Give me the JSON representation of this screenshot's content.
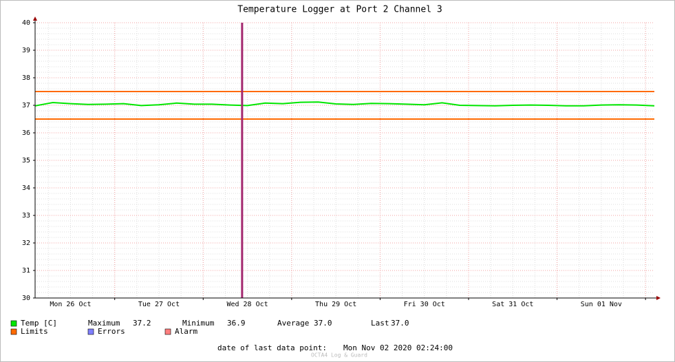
{
  "chart_data": {
    "type": "line",
    "title": "Temperature Logger at Port 2 Channel 3",
    "x": [
      0,
      0.2,
      0.4,
      0.6,
      0.8,
      1.0,
      1.2,
      1.4,
      1.6,
      1.8,
      2.0,
      2.2,
      2.4,
      2.6,
      2.8,
      3.0,
      3.2,
      3.4,
      3.6,
      3.8,
      4.0,
      4.2,
      4.4,
      4.6,
      4.8,
      5.0,
      5.2,
      5.4,
      5.6,
      5.8,
      6.0,
      6.2,
      6.4,
      6.6,
      6.8,
      7.0
    ],
    "series": [
      {
        "name": "Temp [C]",
        "color": "#00e600",
        "values": [
          36.98,
          37.1,
          37.06,
          37.03,
          37.04,
          37.06,
          36.99,
          37.02,
          37.08,
          37.04,
          37.04,
          37.01,
          36.99,
          37.08,
          37.06,
          37.11,
          37.12,
          37.05,
          37.03,
          37.07,
          37.06,
          37.04,
          37.02,
          37.09,
          37.0,
          36.99,
          36.98,
          37.0,
          37.01,
          37.0,
          36.98,
          36.98,
          37.01,
          37.02,
          37.01,
          36.98
        ]
      }
    ],
    "limits": {
      "name": "Limits",
      "color": "#ff6a00",
      "values": [
        36.5,
        37.5
      ]
    },
    "legend_extra": [
      {
        "name": "Errors",
        "color": "#7f7fff"
      },
      {
        "name": "Alarm",
        "color": "#ff7f7f"
      }
    ],
    "events": [
      {
        "x": 2.34,
        "color": "#a3286f"
      }
    ],
    "stats": [
      {
        "label": "Maximum",
        "value": "37.2"
      },
      {
        "label": "Minimum",
        "value": "36.9"
      },
      {
        "label": "Average",
        "value": "37.0"
      },
      {
        "label": "Last",
        "value": "37.0"
      }
    ],
    "xlim": [
      0,
      7
    ],
    "xticks": [
      {
        "value": 0.4,
        "label": "Mon 26 Oct"
      },
      {
        "value": 1.4,
        "label": "Tue 27 Oct"
      },
      {
        "value": 2.4,
        "label": "Wed 28 Oct"
      },
      {
        "value": 3.4,
        "label": "Thu 29 Oct"
      },
      {
        "value": 4.4,
        "label": "Fri 30 Oct"
      },
      {
        "value": 5.4,
        "label": "Sat 31 Oct"
      },
      {
        "value": 6.4,
        "label": "Sun 01 Nov"
      }
    ],
    "xgrid": [
      0.9,
      1.9,
      2.9,
      3.9,
      4.9,
      5.9,
      6.9
    ],
    "ylim": [
      30,
      40
    ],
    "yticks": [
      30,
      31,
      32,
      33,
      34,
      35,
      36,
      37,
      38,
      39,
      40
    ],
    "grid": true,
    "footer_label": "date of last data point:",
    "footer_value": "Mon Nov 02 2020 02:24:00",
    "watermark": "OCTA4 Log & Guard"
  }
}
